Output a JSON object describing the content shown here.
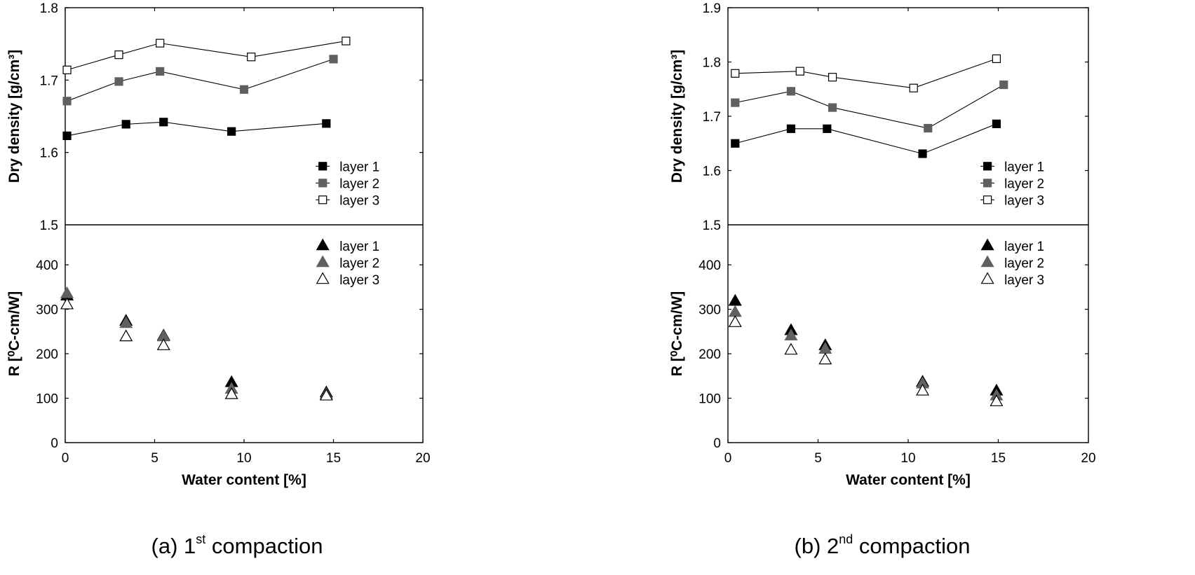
{
  "panels": [
    {
      "id": "a",
      "caption": {
        "prefix": "(a)  1",
        "sup": "st",
        "suffix": " compaction"
      },
      "xlabel": "Water content [%]",
      "xlim": [
        0,
        20
      ],
      "xticks": [
        "0",
        "5",
        "10",
        "15",
        "20"
      ],
      "top": {
        "type": "line",
        "ylabel": "Dry density [g/cm³]",
        "ylim": [
          1.5,
          1.8
        ],
        "yticks": [
          "1.5",
          "1.6",
          "1.7",
          "1.8"
        ],
        "legend_position": "lower-right",
        "series": [
          {
            "name": "layer 1",
            "marker": "square-filled",
            "color": "#000000",
            "x": [
              0.1,
              3.4,
              5.5,
              9.3,
              14.6
            ],
            "y": [
              1.623,
              1.639,
              1.642,
              1.629,
              1.64
            ]
          },
          {
            "name": "layer 2",
            "marker": "square-filled",
            "color": "#606060",
            "x": [
              0.1,
              3.0,
              5.3,
              10.0,
              15.0
            ],
            "y": [
              1.671,
              1.698,
              1.712,
              1.687,
              1.729
            ]
          },
          {
            "name": "layer 3",
            "marker": "square-open",
            "color": "#000000",
            "x": [
              0.1,
              3.0,
              5.3,
              10.4,
              15.7
            ],
            "y": [
              1.714,
              1.735,
              1.751,
              1.732,
              1.754
            ]
          }
        ]
      },
      "bottom": {
        "type": "scatter",
        "ylabel": "R [⁰C-cm/W]",
        "ylim": [
          0,
          490
        ],
        "yticks": [
          "0",
          "100",
          "200",
          "300",
          "400"
        ],
        "legend_position": "top-right",
        "series": [
          {
            "name": "layer 1",
            "marker": "triangle-filled",
            "color": "#000000",
            "x": [
              0.1,
              3.4,
              5.5,
              9.3,
              14.6
            ],
            "y": [
              330,
              273,
              240,
              135,
              112
            ]
          },
          {
            "name": "layer 2",
            "marker": "triangle-filled",
            "color": "#606060",
            "x": [
              0.1,
              3.4,
              5.5,
              9.3,
              14.6
            ],
            "y": [
              335,
              268,
              238,
              120,
              108
            ]
          },
          {
            "name": "layer 3",
            "marker": "triangle-open",
            "color": "#000000",
            "x": [
              0.1,
              3.4,
              5.5,
              9.3,
              14.6
            ],
            "y": [
              310,
              238,
              218,
              108,
              105
            ]
          }
        ]
      }
    },
    {
      "id": "b",
      "caption": {
        "prefix": "(b)  2",
        "sup": "nd",
        "suffix": " compaction"
      },
      "xlabel": "Water content [%]",
      "xlim": [
        0,
        20
      ],
      "xticks": [
        "0",
        "5",
        "10",
        "15",
        "20"
      ],
      "top": {
        "type": "line",
        "ylabel": "Dry density [g/cm³]",
        "ylim": [
          1.5,
          1.9
        ],
        "yticks": [
          "1.5",
          "1.6",
          "1.7",
          "1.8",
          "1.9"
        ],
        "legend_position": "lower-right",
        "series": [
          {
            "name": "layer 1",
            "marker": "square-filled",
            "color": "#000000",
            "x": [
              0.4,
              3.5,
              5.5,
              10.8,
              14.9
            ],
            "y": [
              1.65,
              1.677,
              1.677,
              1.631,
              1.686
            ]
          },
          {
            "name": "layer 2",
            "marker": "square-filled",
            "color": "#606060",
            "x": [
              0.4,
              3.5,
              5.8,
              11.1,
              15.3
            ],
            "y": [
              1.725,
              1.746,
              1.716,
              1.678,
              1.758
            ]
          },
          {
            "name": "layer 3",
            "marker": "square-open",
            "color": "#000000",
            "x": [
              0.4,
              4.0,
              5.8,
              10.3,
              14.9
            ],
            "y": [
              1.779,
              1.783,
              1.772,
              1.752,
              1.806
            ]
          }
        ]
      },
      "bottom": {
        "type": "scatter",
        "ylabel": "R [⁰C-cm/W]",
        "ylim": [
          0,
          490
        ],
        "yticks": [
          "0",
          "100",
          "200",
          "300",
          "400"
        ],
        "legend_position": "top-right",
        "series": [
          {
            "name": "layer 1",
            "marker": "triangle-filled",
            "color": "#000000",
            "x": [
              0.4,
              3.5,
              5.4,
              10.8,
              14.9
            ],
            "y": [
              318,
              252,
              218,
              136,
              116
            ]
          },
          {
            "name": "layer 2",
            "marker": "triangle-filled",
            "color": "#606060",
            "x": [
              0.4,
              3.5,
              5.4,
              10.8,
              14.9
            ],
            "y": [
              293,
              240,
              210,
              132,
              105
            ]
          },
          {
            "name": "layer 3",
            "marker": "triangle-open",
            "color": "#000000",
            "x": [
              0.4,
              3.5,
              5.4,
              10.8,
              14.9
            ],
            "y": [
              270,
              208,
              186,
              116,
              92
            ]
          }
        ]
      }
    }
  ]
}
